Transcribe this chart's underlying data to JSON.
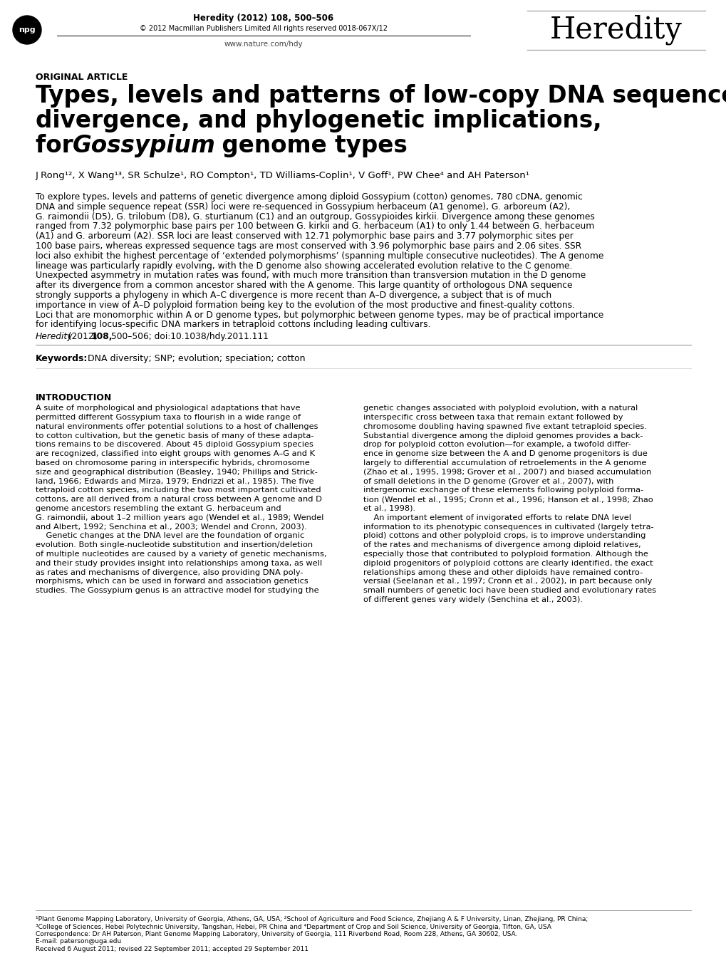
{
  "bg_color": "#ffffff",
  "header_journal": "Heredity (2012) 108, 500–506",
  "header_copyright": "© 2012 Macmillan Publishers Limited All rights reserved 0018-067X/12",
  "header_website": "www.nature.com/hdy",
  "heredity_logo": "Heredity",
  "article_type": "ORIGINAL ARTICLE",
  "title_line1": "Types, levels and patterns of low-copy DNA sequence",
  "title_line2": "divergence, and phylogenetic implications,",
  "title_line3a": "for ",
  "title_line3b": "Gossypium",
  "title_line3c": " genome types",
  "authors": "J Rong¹², X Wang¹³, SR Schulze¹, RO Compton¹, TD Williams-Coplin¹, V Goff¹, PW Chee⁴ and AH Paterson¹",
  "abstract_lines": [
    "To explore types, levels and patterns of genetic divergence among diploid Gossypium (cotton) genomes, 780 cDNA, genomic",
    "DNA and simple sequence repeat (SSR) loci were re-sequenced in Gossypium herbaceum (A1 genome), G. arboreum (A2),",
    "G. raimondii (D5), G. trilobum (D8), G. sturtianum (C1) and an outgroup, Gossypioides kirkii. Divergence among these genomes",
    "ranged from 7.32 polymorphic base pairs per 100 between G. kirkii and G. herbaceum (A1) to only 1.44 between G. herbaceum",
    "(A1) and G. arboreum (A2). SSR loci are least conserved with 12.71 polymorphic base pairs and 3.77 polymorphic sites per",
    "100 base pairs, whereas expressed sequence tags are most conserved with 3.96 polymorphic base pairs and 2.06 sites. SSR",
    "loci also exhibit the highest percentage of ‘extended polymorphisms’ (spanning multiple consecutive nucleotides). The A genome",
    "lineage was particularly rapidly evolving, with the D genome also showing accelerated evolution relative to the C genome.",
    "Unexpected asymmetry in mutation rates was found, with much more transition than transversion mutation in the D genome",
    "after its divergence from a common ancestor shared with the A genome. This large quantity of orthologous DNA sequence",
    "strongly supports a phylogeny in which A–C divergence is more recent than A–D divergence, a subject that is of much",
    "importance in view of A–D polyploid formation being key to the evolution of the most productive and finest-quality cottons.",
    "Loci that are monomorphic within A or D genome types, but polymorphic between genome types, may be of practical importance",
    "for identifying locus-specific DNA markers in tetraploid cottons including leading cultivars."
  ],
  "citation_italic": "Heredity",
  "citation_rest": " (2012) ",
  "citation_bold": "108,",
  "citation_end": " 500–506; doi:10.1038/hdy.2011.111",
  "keywords_bold": "Keywords:",
  "keywords_text": "  DNA diversity; SNP; evolution; speciation; cotton",
  "intro_heading": "INTRODUCTION",
  "intro_left_lines": [
    "A suite of morphological and physiological adaptations that have",
    "permitted different Gossypium taxa to flourish in a wide range of",
    "natural environments offer potential solutions to a host of challenges",
    "to cotton cultivation, but the genetic basis of many of these adapta-",
    "tions remains to be discovered. About 45 diploid Gossypium species",
    "are recognized, classified into eight groups with genomes A–G and K",
    "based on chromosome paring in interspecific hybrids, chromosome",
    "size and geographical distribution (Beasley, 1940; Phillips and Strick-",
    "land, 1966; Edwards and Mirza, 1979; Endrizzi et al., 1985). The five",
    "tetraploid cotton species, including the two most important cultivated",
    "cottons, are all derived from a natural cross between A genome and D",
    "genome ancestors resembling the extant G. herbaceum and",
    "G. raimondii, about 1–2 million years ago (Wendel et al., 1989; Wendel",
    "and Albert, 1992; Senchina et al., 2003; Wendel and Cronn, 2003).",
    "    Genetic changes at the DNA level are the foundation of organic",
    "evolution. Both single-nucleotide substitution and insertion/deletion",
    "of multiple nucleotides are caused by a variety of genetic mechanisms,",
    "and their study provides insight into relationships among taxa, as well",
    "as rates and mechanisms of divergence, also providing DNA poly-",
    "morphisms, which can be used in forward and association genetics",
    "studies. The Gossypium genus is an attractive model for studying the"
  ],
  "intro_right_lines": [
    "genetic changes associated with polyploid evolution, with a natural",
    "interspecific cross between taxa that remain extant followed by",
    "chromosome doubling having spawned five extant tetraploid species.",
    "Substantial divergence among the diploid genomes provides a back-",
    "drop for polyploid cotton evolution—for example, a twofold differ-",
    "ence in genome size between the A and D genome progenitors is due",
    "largely to differential accumulation of retroelements in the A genome",
    "(Zhao et al., 1995, 1998; Grover et al., 2007) and biased accumulation",
    "of small deletions in the D genome (Grover et al., 2007), with",
    "intergenomic exchange of these elements following polyploid forma-",
    "tion (Wendel et al., 1995; Cronn et al., 1996; Hanson et al., 1998; Zhao",
    "et al., 1998).",
    "    An important element of invigorated efforts to relate DNA level",
    "information to its phenotypic consequences in cultivated (largely tetra-",
    "ploid) cottons and other polyploid crops, is to improve understanding",
    "of the rates and mechanisms of divergence among diploid relatives,",
    "especially those that contributed to polyploid formation. Although the",
    "diploid progenitors of polyploid cottons are clearly identified, the exact",
    "relationships among these and other diploids have remained contro-",
    "versial (Seelanan et al., 1997; Cronn et al., 2002), in part because only",
    "small numbers of genetic loci have been studied and evolutionary rates",
    "of different genes vary widely (Senchina et al., 2003)."
  ],
  "footnote1": "¹Plant Genome Mapping Laboratory, University of Georgia, Athens, GA, USA; ²School of Agriculture and Food Science, Zhejiang A & F University, Linan, Zhejiang, PR China;",
  "footnote2": "³College of Sciences, Hebei Polytechnic University, Tangshan, Hebei, PR China and ⁴Department of Crop and Soil Science, University of Georgia, Tifton, GA, USA",
  "footnote3": "Correspondence: Dr AH Paterson, Plant Genome Mapping Laboratory, University of Georgia, 111 Riverbend Road, Room 228, Athens, GA 30602, USA.",
  "footnote4": "E-mail: paterson@uga.edu",
  "footnote5": "Received 6 August 2011; revised 22 September 2011; accepted 29 September 2011"
}
